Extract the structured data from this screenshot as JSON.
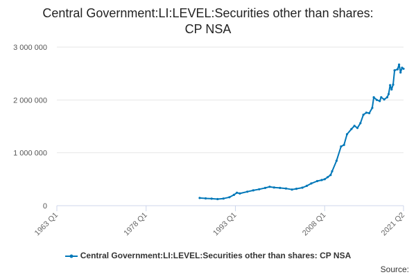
{
  "chart_data": {
    "type": "line",
    "title_lines": [
      "Central Government:LI:LEVEL:Securities other than shares:",
      "CP NSA"
    ],
    "xlabel": "",
    "ylabel": "",
    "x_ticks": [
      {
        "label": "1963 Q1",
        "year": 1963.0
      },
      {
        "label": "1978 Q1",
        "year": 1978.0
      },
      {
        "label": "1993 Q1",
        "year": 1993.0
      },
      {
        "label": "2008 Q1",
        "year": 2008.0
      },
      {
        "label": "2021 Q2",
        "year": 2021.25
      }
    ],
    "y_ticks": [
      {
        "label": "0",
        "value": 0
      },
      {
        "label": "1 000 000",
        "value": 1000000
      },
      {
        "label": "2 000 000",
        "value": 2000000
      },
      {
        "label": "3 000 000",
        "value": 3000000
      }
    ],
    "xlim": [
      1963.0,
      2021.25
    ],
    "ylim": [
      0,
      3000000
    ],
    "grid": true,
    "legend_position": "bottom",
    "series": [
      {
        "name": "Central Government:LI:LEVEL:Securities other than shares: CP NSA",
        "color": "#0077b8",
        "points": [
          [
            1987.0,
            145000
          ],
          [
            1988.0,
            138000
          ],
          [
            1989.0,
            132000
          ],
          [
            1990.0,
            125000
          ],
          [
            1991.0,
            135000
          ],
          [
            1992.0,
            160000
          ],
          [
            1992.75,
            205000
          ],
          [
            1993.25,
            245000
          ],
          [
            1993.75,
            230000
          ],
          [
            1995.0,
            265000
          ],
          [
            1996.0,
            290000
          ],
          [
            1997.0,
            310000
          ],
          [
            1998.0,
            335000
          ],
          [
            1998.75,
            358000
          ],
          [
            1999.5,
            345000
          ],
          [
            2000.5,
            335000
          ],
          [
            2001.5,
            325000
          ],
          [
            2002.5,
            305000
          ],
          [
            2003.25,
            320000
          ],
          [
            2004.25,
            340000
          ],
          [
            2005.0,
            375000
          ],
          [
            2005.75,
            420000
          ],
          [
            2006.75,
            465000
          ],
          [
            2007.5,
            485000
          ],
          [
            2008.0,
            500000
          ],
          [
            2008.5,
            540000
          ],
          [
            2009.0,
            580000
          ],
          [
            2009.25,
            650000
          ],
          [
            2010.0,
            850000
          ],
          [
            2010.75,
            1120000
          ],
          [
            2011.25,
            1150000
          ],
          [
            2011.75,
            1350000
          ],
          [
            2012.5,
            1450000
          ],
          [
            2013.0,
            1510000
          ],
          [
            2013.5,
            1470000
          ],
          [
            2014.0,
            1560000
          ],
          [
            2014.5,
            1720000
          ],
          [
            2015.0,
            1760000
          ],
          [
            2015.5,
            1750000
          ],
          [
            2016.0,
            1850000
          ],
          [
            2016.25,
            2050000
          ],
          [
            2016.75,
            2000000
          ],
          [
            2017.25,
            1980000
          ],
          [
            2017.5,
            2050000
          ],
          [
            2018.0,
            2010000
          ],
          [
            2018.5,
            2050000
          ],
          [
            2018.75,
            2110000
          ],
          [
            2019.0,
            2280000
          ],
          [
            2019.25,
            2200000
          ],
          [
            2019.5,
            2290000
          ],
          [
            2019.75,
            2560000
          ],
          [
            2020.25,
            2580000
          ],
          [
            2020.5,
            2670000
          ],
          [
            2020.75,
            2520000
          ],
          [
            2021.0,
            2610000
          ],
          [
            2021.25,
            2590000
          ]
        ]
      }
    ],
    "source_label": "Source:"
  }
}
